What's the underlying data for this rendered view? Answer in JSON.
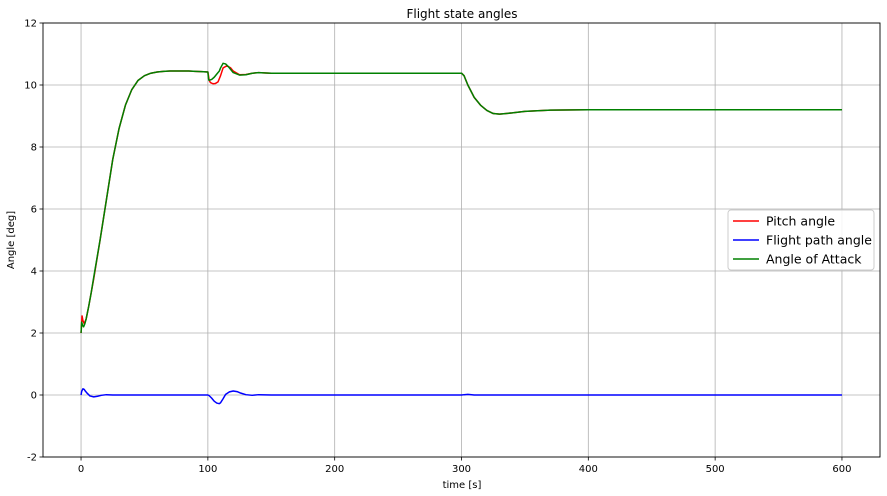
{
  "chart_data": {
    "type": "line",
    "title": "Flight state angles",
    "xlabel": "time [s]",
    "ylabel": "Angle [deg]",
    "xlim": [
      -30,
      630
    ],
    "ylim": [
      -2,
      12
    ],
    "xticks": [
      0,
      100,
      200,
      300,
      400,
      500,
      600
    ],
    "yticks": [
      -2,
      0,
      2,
      4,
      6,
      8,
      10,
      12
    ],
    "grid": true,
    "legend_position": "center-right",
    "series": [
      {
        "name": "Pitch angle",
        "color": "#ff0000",
        "x": [
          0,
          0.8,
          1.5,
          2.5,
          4,
          6,
          8,
          10,
          15,
          20,
          25,
          30,
          35,
          40,
          45,
          50,
          55,
          60,
          65,
          70,
          75,
          80,
          85,
          90,
          95,
          100,
          100.5,
          101,
          102,
          104,
          106,
          108,
          110,
          112,
          115,
          118,
          120,
          125,
          130,
          135,
          140,
          150,
          200,
          250,
          300,
          302,
          305,
          310,
          315,
          320,
          325,
          330,
          340,
          350,
          370,
          400,
          500,
          600
        ],
        "y": [
          2.0,
          2.55,
          2.4,
          2.3,
          2.45,
          2.85,
          3.3,
          3.75,
          5.0,
          6.3,
          7.6,
          8.6,
          9.35,
          9.85,
          10.15,
          10.3,
          10.38,
          10.42,
          10.44,
          10.45,
          10.45,
          10.45,
          10.45,
          10.44,
          10.43,
          10.42,
          10.3,
          10.15,
          10.08,
          10.04,
          10.05,
          10.1,
          10.3,
          10.55,
          10.62,
          10.55,
          10.45,
          10.33,
          10.34,
          10.38,
          10.4,
          10.38,
          10.38,
          10.38,
          10.38,
          10.3,
          10.0,
          9.6,
          9.35,
          9.18,
          9.08,
          9.06,
          9.1,
          9.15,
          9.19,
          9.2,
          9.2,
          9.2
        ]
      },
      {
        "name": "Flight path angle",
        "color": "#0000ff",
        "x": [
          0,
          0.5,
          1.5,
          2.5,
          3.5,
          5,
          7,
          10,
          13,
          16,
          20,
          25,
          30,
          40,
          60,
          80,
          100,
          101,
          103,
          105,
          107,
          109,
          110,
          112,
          114,
          117,
          120,
          123,
          126,
          130,
          135,
          140,
          150,
          200,
          250,
          300,
          302,
          305,
          310,
          320,
          400,
          500,
          600
        ],
        "y": [
          0.0,
          0.12,
          0.2,
          0.18,
          0.12,
          0.05,
          -0.03,
          -0.06,
          -0.04,
          -0.01,
          0.01,
          0.0,
          0.0,
          0.0,
          0.0,
          0.0,
          0.0,
          -0.02,
          -0.1,
          -0.2,
          -0.26,
          -0.28,
          -0.25,
          -0.12,
          0.02,
          0.1,
          0.13,
          0.11,
          0.06,
          0.01,
          -0.01,
          0.01,
          0.0,
          0.0,
          0.0,
          0.0,
          0.01,
          0.02,
          0.0,
          0.0,
          0.0,
          0.0,
          0.0
        ]
      },
      {
        "name": "Angle of Attack",
        "color": "#008000",
        "x": [
          0,
          0.5,
          1.2,
          2,
          3,
          4,
          6,
          8,
          10,
          15,
          20,
          25,
          30,
          35,
          40,
          45,
          50,
          55,
          60,
          65,
          70,
          75,
          80,
          85,
          90,
          95,
          100,
          100.5,
          101,
          103,
          105,
          107,
          109,
          110,
          112,
          114,
          116,
          118,
          120,
          125,
          130,
          135,
          140,
          150,
          200,
          250,
          300,
          302,
          305,
          310,
          315,
          320,
          325,
          330,
          340,
          350,
          370,
          400,
          500,
          600
        ],
        "y": [
          2.0,
          2.35,
          2.25,
          2.2,
          2.3,
          2.45,
          2.85,
          3.3,
          3.8,
          5.0,
          6.3,
          7.6,
          8.6,
          9.35,
          9.85,
          10.15,
          10.3,
          10.38,
          10.42,
          10.44,
          10.45,
          10.45,
          10.45,
          10.45,
          10.44,
          10.43,
          10.42,
          10.2,
          10.15,
          10.18,
          10.25,
          10.35,
          10.45,
          10.55,
          10.7,
          10.68,
          10.6,
          10.5,
          10.4,
          10.32,
          10.33,
          10.38,
          10.4,
          10.38,
          10.38,
          10.38,
          10.38,
          10.3,
          10.0,
          9.6,
          9.35,
          9.18,
          9.08,
          9.06,
          9.1,
          9.15,
          9.19,
          9.2,
          9.2,
          9.2
        ]
      }
    ]
  }
}
